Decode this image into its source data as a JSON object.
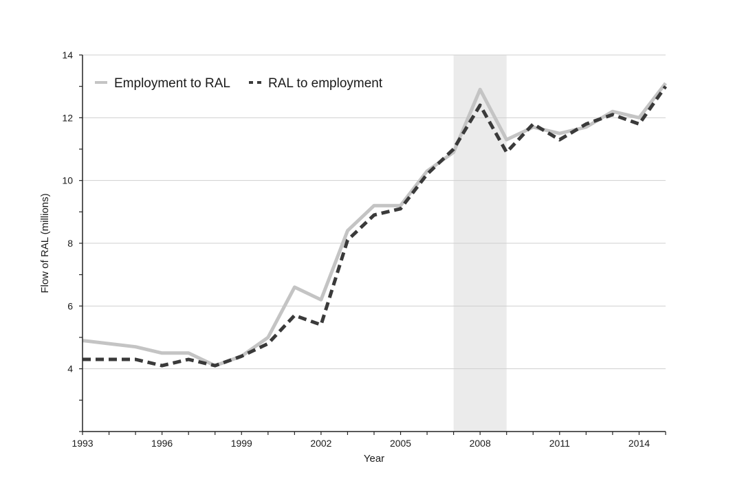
{
  "chart_data": {
    "type": "line",
    "xlabel": "Year",
    "ylabel": "Flow of RAL (millions)",
    "xlim": [
      1993,
      2015
    ],
    "ylim": [
      2,
      14
    ],
    "x_ticks": [
      1993,
      1996,
      1999,
      2002,
      2005,
      2008,
      2011,
      2014
    ],
    "x_tick_labels": [
      "1993",
      "1996",
      "1999",
      "2002",
      "2005",
      "2008",
      "2011",
      "2014"
    ],
    "y_ticks": [
      4,
      6,
      8,
      10,
      12,
      14
    ],
    "y_tick_labels": [
      "4",
      "6",
      "8",
      "10",
      "12",
      "14"
    ],
    "grid": "horizontal",
    "legend_position": "top-left",
    "shaded_region": {
      "x_start": 2007,
      "x_end": 2009,
      "color": "#ebebeb"
    },
    "x": [
      1993,
      1994,
      1995,
      1996,
      1997,
      1998,
      1999,
      2000,
      2001,
      2002,
      2003,
      2004,
      2005,
      2006,
      2007,
      2008,
      2009,
      2010,
      2011,
      2012,
      2013,
      2014,
      2015
    ],
    "series": [
      {
        "name": "Employment to RAL",
        "style": "solid",
        "color": "#c4c4c4",
        "values": [
          4.9,
          4.8,
          4.7,
          4.5,
          4.5,
          4.1,
          4.4,
          5.0,
          6.6,
          6.2,
          8.4,
          9.2,
          9.2,
          10.3,
          10.9,
          12.9,
          11.3,
          11.7,
          11.5,
          11.7,
          12.2,
          12.0,
          13.1
        ]
      },
      {
        "name": "RAL to employment",
        "style": "dashed",
        "color": "#3a3a3a",
        "values": [
          4.3,
          4.3,
          4.3,
          4.1,
          4.3,
          4.1,
          4.4,
          4.8,
          5.7,
          5.4,
          8.1,
          8.9,
          9.1,
          10.2,
          11.0,
          12.4,
          10.9,
          11.8,
          11.3,
          11.8,
          12.1,
          11.8,
          13.0
        ]
      }
    ]
  }
}
